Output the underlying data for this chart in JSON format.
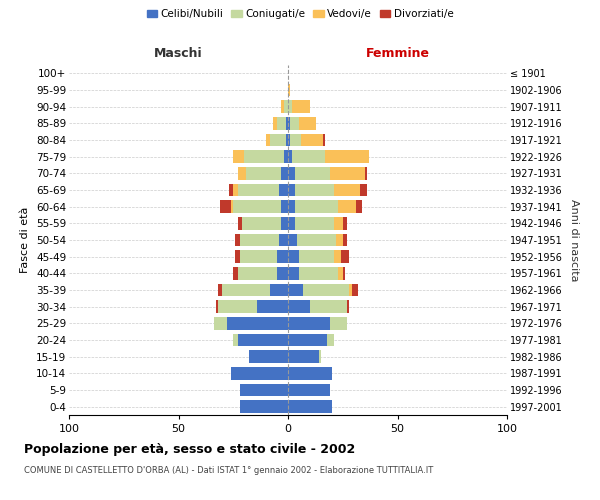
{
  "age_groups": [
    "100+",
    "95-99",
    "90-94",
    "85-89",
    "80-84",
    "75-79",
    "70-74",
    "65-69",
    "60-64",
    "55-59",
    "50-54",
    "45-49",
    "40-44",
    "35-39",
    "30-34",
    "25-29",
    "20-24",
    "15-19",
    "10-14",
    "5-9",
    "0-4"
  ],
  "birth_years": [
    "≤ 1901",
    "1902-1906",
    "1907-1911",
    "1912-1916",
    "1917-1921",
    "1922-1926",
    "1927-1931",
    "1932-1936",
    "1937-1941",
    "1942-1946",
    "1947-1951",
    "1952-1956",
    "1957-1961",
    "1962-1966",
    "1967-1971",
    "1972-1976",
    "1977-1981",
    "1982-1986",
    "1987-1991",
    "1992-1996",
    "1997-2001"
  ],
  "males": {
    "celibe": [
      0,
      0,
      0,
      1,
      1,
      2,
      3,
      4,
      3,
      3,
      4,
      5,
      5,
      8,
      14,
      28,
      23,
      18,
      26,
      22,
      22
    ],
    "coniugato": [
      0,
      0,
      2,
      4,
      7,
      18,
      16,
      19,
      22,
      18,
      18,
      17,
      18,
      22,
      18,
      6,
      2,
      0,
      0,
      0,
      0
    ],
    "vedovo": [
      0,
      0,
      1,
      2,
      2,
      5,
      4,
      2,
      1,
      0,
      0,
      0,
      0,
      0,
      0,
      0,
      0,
      0,
      0,
      0,
      0
    ],
    "divorziato": [
      0,
      0,
      0,
      0,
      0,
      0,
      0,
      2,
      5,
      2,
      2,
      2,
      2,
      2,
      1,
      0,
      0,
      0,
      0,
      0,
      0
    ]
  },
  "females": {
    "nubile": [
      0,
      0,
      0,
      1,
      1,
      2,
      3,
      3,
      3,
      3,
      4,
      5,
      5,
      7,
      10,
      19,
      18,
      14,
      20,
      19,
      20
    ],
    "coniugata": [
      0,
      0,
      2,
      4,
      5,
      15,
      16,
      18,
      20,
      18,
      18,
      16,
      18,
      21,
      17,
      8,
      3,
      1,
      0,
      0,
      0
    ],
    "vedova": [
      0,
      1,
      8,
      8,
      10,
      20,
      16,
      12,
      8,
      4,
      3,
      3,
      2,
      1,
      0,
      0,
      0,
      0,
      0,
      0,
      0
    ],
    "divorziata": [
      0,
      0,
      0,
      0,
      1,
      0,
      1,
      3,
      3,
      2,
      2,
      4,
      1,
      3,
      1,
      0,
      0,
      0,
      0,
      0,
      0
    ]
  },
  "colors": {
    "celibe": "#4472C4",
    "coniugato": "#c5d9a0",
    "vedovo": "#FAC058",
    "divorziato": "#C0392B"
  },
  "legend_labels": [
    "Celibi/Nubili",
    "Coniugati/e",
    "Vedovi/e",
    "Divorziati/e"
  ],
  "title": "Popolazione per età, sesso e stato civile - 2002",
  "subtitle": "COMUNE DI CASTELLETTO D'ORBA (AL) - Dati ISTAT 1° gennaio 2002 - Elaborazione TUTTITALIA.IT",
  "xlabel_left": "Maschi",
  "xlabel_right": "Femmine",
  "ylabel_left": "Fasce di età",
  "ylabel_right": "Anni di nascita",
  "xlim": 100,
  "bg_color": "#ffffff",
  "grid_color": "#cccccc"
}
